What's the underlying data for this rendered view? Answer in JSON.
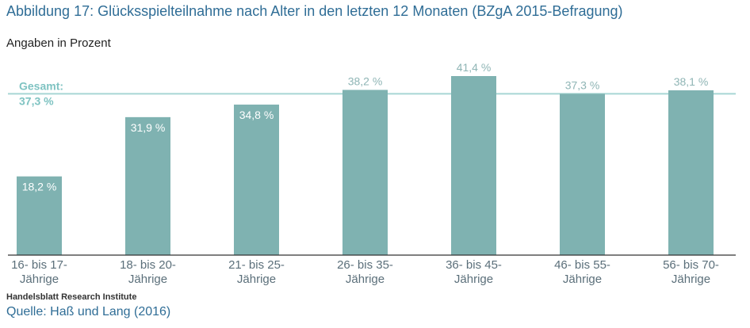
{
  "title": "Abbildung 17: Glücksspielteilnahme nach Alter in den letzten 12 Monaten (BZgA 2015-Befragung)",
  "subtitle": "Angaben in Prozent",
  "institute": "Handelsblatt Research Institute",
  "source": "Quelle: Haß und Lang (2016)",
  "colors": {
    "bar": "#7fb2b1",
    "reference_line": "#a8d6d5",
    "reference_text": "#7fc3c2",
    "accent_text": "#2f6d96"
  },
  "chart_data": {
    "type": "bar",
    "categories": [
      [
        "16- bis 17-",
        "Jährige"
      ],
      [
        "18- bis 20-",
        "Jährige"
      ],
      [
        "21- bis 25-",
        "Jährige"
      ],
      [
        "26- bis 35-",
        "Jährige"
      ],
      [
        "36- bis 45-",
        "Jährige"
      ],
      [
        "46- bis 55-",
        "Jährige"
      ],
      [
        "56- bis 70-",
        "Jährige"
      ]
    ],
    "values": [
      18.2,
      31.9,
      34.8,
      38.2,
      41.4,
      37.3,
      38.1
    ],
    "value_labels": [
      "18,2 %",
      "31,9 %",
      "34,8 %",
      "38,2 %",
      "41,4 %",
      "37,3 %",
      "38,1 %"
    ],
    "reference": {
      "value": 37.3,
      "label_line1": "Gesamt:",
      "label_line2": "37,3 %"
    },
    "ylim": [
      0,
      42
    ],
    "grid": false,
    "legend": "none"
  }
}
